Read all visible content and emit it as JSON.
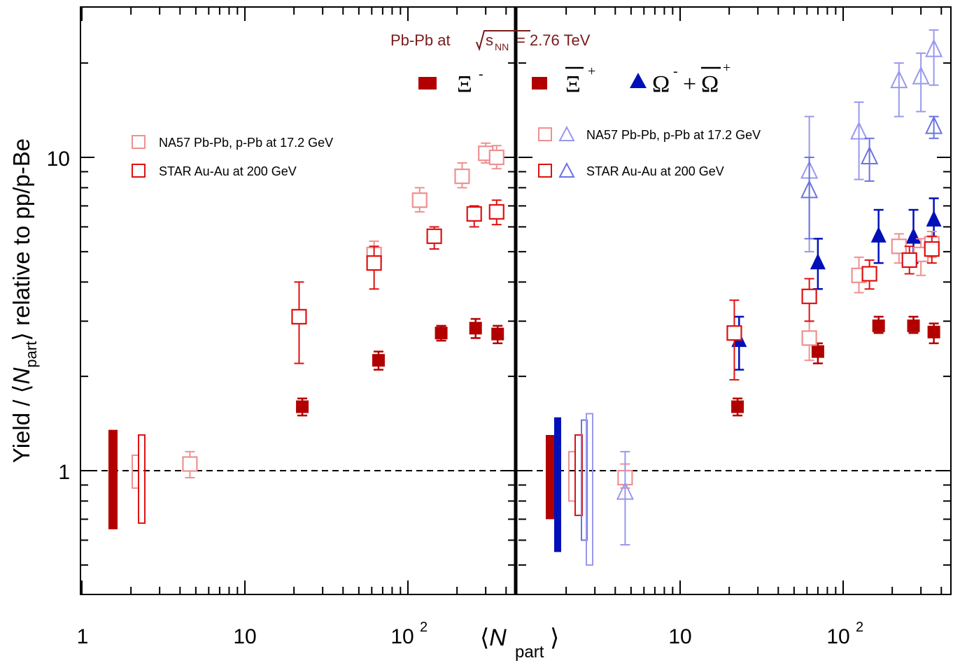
{
  "chart_data": {
    "type": "scatter",
    "title": "Pb-Pb at √sNN = 2.76 TeV",
    "title_parts": {
      "prefix": "Pb-Pb at ",
      "s": "s",
      "sub": "NN",
      "suffix": " = 2.76 TeV"
    },
    "ylabel": {
      "prefix": "Yield / ⟨",
      "n": "N",
      "sub": "part",
      "suffix": "⟩ relative to pp/p-Be"
    },
    "xlabel": {
      "open": "⟨",
      "n": "N",
      "sub": "part",
      "close": "⟩"
    },
    "x_scale": "log",
    "y_scale": "log",
    "xlim": [
      1,
      450
    ],
    "ylim": [
      0.45,
      30
    ],
    "x_tick_labels": [
      "1",
      "10",
      "10",
      "2"
    ],
    "y_tick_labels": [
      "1",
      "10"
    ],
    "colors": {
      "alice": "#b20000",
      "na57_red": "#ee9090",
      "star_red": "#dd1111",
      "omega": "#0010b8",
      "na57_blue": "#9898ee",
      "star_blue": "#6a74e0",
      "title": "#7a1a1a"
    },
    "panels": [
      {
        "name": "Xi- panel",
        "legend_symbol": "Ξ",
        "legend_sup": "-",
        "legend_entries": [
          "NA57 Pb-Pb, p-Pb at 17.2 GeV",
          "STAR Au-Au at 200 GeV"
        ],
        "series": [
          {
            "name": "ALICE Xi-",
            "marker": "filled-square",
            "color": "#b20000",
            "x": [
              22.5,
              66,
              160,
              260,
              355
            ],
            "y": [
              1.6,
              2.25,
              2.75,
              2.85,
              2.73
            ],
            "yerr": [
              [
                1.5,
                1.7
              ],
              [
                2.1,
                2.4
              ],
              [
                2.6,
                2.9
              ],
              [
                2.65,
                3.05
              ],
              [
                2.55,
                2.9
              ]
            ]
          },
          {
            "name": "NA57 Pb-Pb, p-Pb at 17.2 GeV",
            "marker": "open-square",
            "color": "#ee9090",
            "x": [
              4.6,
              62,
              118,
              215,
              300,
              350
            ],
            "y": [
              1.05,
              4.9,
              7.3,
              8.7,
              10.3,
              10.0
            ],
            "yerr": [
              [
                0.95,
                1.15
              ],
              [
                4.5,
                5.4
              ],
              [
                6.7,
                8.0
              ],
              [
                8.0,
                9.6
              ],
              [
                9.6,
                11.1
              ],
              [
                9.2,
                10.9
              ]
            ]
          },
          {
            "name": "STAR Au-Au at 200 GeV",
            "marker": "open-square",
            "color": "#dd1111",
            "x": [
              21.5,
              62,
              145,
              255,
              350
            ],
            "y": [
              3.1,
              4.6,
              5.6,
              6.6,
              6.7
            ],
            "yerr": [
              [
                2.2,
                4.0
              ],
              [
                3.8,
                5.2
              ],
              [
                5.1,
                6.0
              ],
              [
                6.0,
                7.0
              ],
              [
                6.1,
                7.3
              ]
            ]
          }
        ],
        "normalization_boxes": [
          {
            "name": "ALICE",
            "style": "filled",
            "color": "#b20000",
            "y": [
              0.65,
              1.35
            ]
          },
          {
            "name": "NA57",
            "style": "open",
            "color": "#ee9090",
            "y": [
              0.88,
              1.12
            ]
          },
          {
            "name": "STAR",
            "style": "open",
            "color": "#dd1111",
            "y": [
              0.68,
              1.3
            ]
          }
        ]
      },
      {
        "name": "Xi+ and Omega panel",
        "legend_symbols": {
          "xi": "Ξ",
          "xi_sup": "+",
          "omega_a": "Ω",
          "omega_a_sup": "-",
          "plus": "+",
          "omega_b": "Ω",
          "omega_b_sup": "+"
        },
        "legend_entries": [
          "NA57 Pb-Pb, p-Pb at 17.2 GeV",
          "STAR Au-Au at 200 GeV"
        ],
        "series": [
          {
            "name": "ALICE Xi+",
            "marker": "filled-square",
            "color": "#b20000",
            "x": [
              22.5,
              70,
              165,
              270,
              360
            ],
            "y": [
              1.6,
              2.4,
              2.9,
              2.9,
              2.77
            ],
            "yerr": [
              [
                1.5,
                1.7
              ],
              [
                2.2,
                2.55
              ],
              [
                2.75,
                3.1
              ],
              [
                2.75,
                3.1
              ],
              [
                2.55,
                2.95
              ]
            ]
          },
          {
            "name": "ALICE Omega",
            "marker": "filled-triangle",
            "color": "#0010b8",
            "x": [
              23,
              70,
              165,
              270,
              360
            ],
            "y": [
              2.6,
              4.6,
              5.6,
              5.55,
              6.3
            ],
            "yerr": [
              [
                2.1,
                3.1
              ],
              [
                3.8,
                5.5
              ],
              [
                4.6,
                6.8
              ],
              [
                4.6,
                6.8
              ],
              [
                5.3,
                7.4
              ]
            ]
          },
          {
            "name": "NA57 Xi+",
            "marker": "open-square",
            "color": "#ee9090",
            "x": [
              4.6,
              62,
              125,
              220,
              300,
              350
            ],
            "y": [
              0.95,
              2.65,
              4.2,
              5.2,
              4.9,
              5.3
            ],
            "yerr": [
              [
                0.88,
                1.05
              ],
              [
                2.25,
                3.0
              ],
              [
                3.7,
                4.8
              ],
              [
                4.6,
                5.7
              ],
              [
                4.2,
                5.5
              ],
              [
                4.8,
                5.8
              ]
            ]
          },
          {
            "name": "STAR Xi+",
            "marker": "open-square",
            "color": "#dd1111",
            "x": [
              21.5,
              62,
              145,
              255,
              350
            ],
            "y": [
              2.75,
              3.6,
              4.25,
              4.7,
              5.1
            ],
            "yerr": [
              [
                1.95,
                3.5
              ],
              [
                3.0,
                4.1
              ],
              [
                3.8,
                4.7
              ],
              [
                4.25,
                5.2
              ],
              [
                4.6,
                5.6
              ]
            ]
          },
          {
            "name": "NA57 Omega",
            "marker": "open-triangle",
            "color": "#9898ee",
            "x": [
              4.6,
              62,
              125,
              220,
              300,
              360
            ],
            "y": [
              0.85,
              9.0,
              12.0,
              17.5,
              18.0,
              22.0
            ],
            "yerr": [
              [
                0.58,
                1.15
              ],
              [
                5.0,
                13.5
              ],
              [
                8.5,
                15.0
              ],
              [
                13.5,
                20.0
              ],
              [
                14.0,
                21.5
              ],
              [
                17.0,
                25.5
              ]
            ]
          },
          {
            "name": "STAR Omega",
            "marker": "open-triangle",
            "color": "#6a74e0",
            "x": [
              62,
              145,
              360
            ],
            "y": [
              7.8,
              10.0,
              12.5
            ],
            "yerr": [
              [
                5.5,
                10.0
              ],
              [
                8.4,
                11.5
              ],
              [
                11.5,
                13.5
              ]
            ]
          }
        ],
        "normalization_boxes": [
          {
            "name": "ALICE Xi",
            "style": "filled",
            "color": "#b20000",
            "y": [
              0.7,
              1.3
            ]
          },
          {
            "name": "ALICE Omega",
            "style": "filled",
            "color": "#0010b8",
            "y": [
              0.55,
              1.48
            ]
          },
          {
            "name": "NA57 Xi",
            "style": "open",
            "color": "#ee9090",
            "y": [
              0.8,
              1.15
            ]
          },
          {
            "name": "STAR Xi",
            "style": "open",
            "color": "#dd1111",
            "y": [
              0.72,
              1.3
            ]
          },
          {
            "name": "STAR Omega",
            "style": "open",
            "color": "#6a74e0",
            "y": [
              0.6,
              1.45
            ]
          },
          {
            "name": "NA57 Omega",
            "style": "open",
            "color": "#9898ee",
            "y": [
              0.5,
              1.52
            ]
          }
        ]
      }
    ]
  }
}
